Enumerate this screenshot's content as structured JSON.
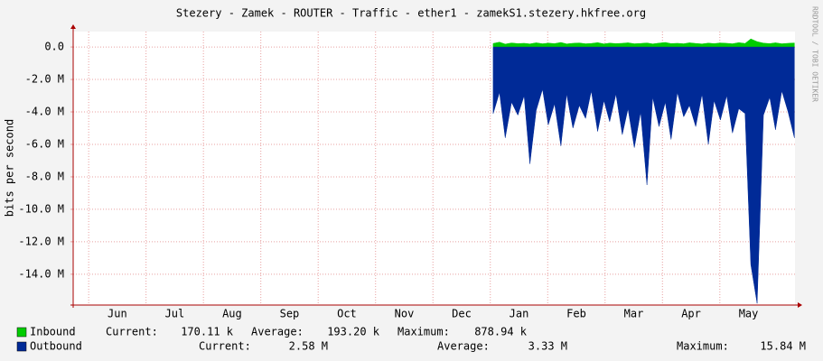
{
  "chart_data": {
    "type": "area",
    "title": "Stezery - Zamek - ROUTER - Traffic - ether1 - zamekS1.stezery.hkfree.org",
    "y_label": "bits per second",
    "watermark": "RRDTOOL / TOBI OETIKER",
    "ylim": [
      -15900000,
      950000
    ],
    "yticks": [
      {
        "value": 0,
        "label": "0.0"
      },
      {
        "value": -2000000,
        "label": "-2.0 M"
      },
      {
        "value": -4000000,
        "label": "-4.0 M"
      },
      {
        "value": -6000000,
        "label": "-6.0 M"
      },
      {
        "value": -8000000,
        "label": "-8.0 M"
      },
      {
        "value": -10000000,
        "label": "-10.0 M"
      },
      {
        "value": -12000000,
        "label": "-12.0 M"
      },
      {
        "value": -14000000,
        "label": "-14.0 M"
      }
    ],
    "xlim": [
      -0.77,
      11.81
    ],
    "xticks": [
      {
        "value": 0,
        "label": "Jun"
      },
      {
        "value": 1,
        "label": "Jul"
      },
      {
        "value": 2,
        "label": "Aug"
      },
      {
        "value": 3,
        "label": "Sep"
      },
      {
        "value": 4,
        "label": "Oct"
      },
      {
        "value": 5,
        "label": "Nov"
      },
      {
        "value": 6,
        "label": "Dec"
      },
      {
        "value": 7,
        "label": "Jan"
      },
      {
        "value": 8,
        "label": "Feb"
      },
      {
        "value": 9,
        "label": "Mar"
      },
      {
        "value": 10,
        "label": "Apr"
      },
      {
        "value": 11,
        "label": "May"
      }
    ],
    "grid": true,
    "x": [
      6.55,
      6.66,
      6.76,
      6.87,
      6.98,
      7.09,
      7.19,
      7.3,
      7.41,
      7.51,
      7.62,
      7.73,
      7.83,
      7.94,
      8.05,
      8.16,
      8.26,
      8.37,
      8.48,
      8.58,
      8.69,
      8.8,
      8.9,
      9.01,
      9.12,
      9.23,
      9.33,
      9.44,
      9.55,
      9.65,
      9.76,
      9.87,
      9.97,
      10.08,
      10.19,
      10.3,
      10.4,
      10.51,
      10.62,
      10.72,
      10.83,
      10.94,
      11.04,
      11.15,
      11.26,
      11.37,
      11.47,
      11.58,
      11.69,
      11.8
    ],
    "series": [
      {
        "name": "Inbound",
        "color": "#00cc00",
        "values": [
          220000,
          300000,
          180000,
          250000,
          210000,
          230000,
          190000,
          260000,
          200000,
          240000,
          210000,
          280000,
          190000,
          230000,
          250000,
          200000,
          220000,
          270000,
          190000,
          240000,
          210000,
          230000,
          260000,
          200000,
          220000,
          250000,
          190000,
          240000,
          280000,
          210000,
          230000,
          200000,
          260000,
          220000,
          190000,
          240000,
          210000,
          250000,
          230000,
          200000,
          270000,
          220000,
          500000,
          330000,
          240000,
          210000,
          260000,
          200000,
          230000,
          250000
        ],
        "stats": [
          {
            "label": "Current:",
            "value": "170.11 k"
          },
          {
            "label": "Average:",
            "value": "193.20 k"
          },
          {
            "label": "Maximum:",
            "value": "878.94 k"
          }
        ]
      },
      {
        "name": "Outbound",
        "color": "#002a97",
        "values": [
          -4100000,
          -2800000,
          -5600000,
          -3400000,
          -4200000,
          -3000000,
          -7200000,
          -3900000,
          -2600000,
          -4800000,
          -3500000,
          -6100000,
          -2900000,
          -5000000,
          -3600000,
          -4400000,
          -2700000,
          -5200000,
          -3300000,
          -4600000,
          -2900000,
          -5400000,
          -3800000,
          -6200000,
          -4000000,
          -8500000,
          -3100000,
          -4900000,
          -3400000,
          -5700000,
          -2800000,
          -4300000,
          -3600000,
          -4900000,
          -2900000,
          -6000000,
          -3300000,
          -4500000,
          -3000000,
          -5300000,
          -3800000,
          -4100000,
          -13400000,
          -15800000,
          -4200000,
          -3100000,
          -5100000,
          -2700000,
          -4000000,
          -5600000
        ],
        "stats": [
          {
            "label": "Current:",
            "value": "2.58 M"
          },
          {
            "label": "Average:",
            "value": "3.33 M"
          },
          {
            "label": "Maximum:",
            "value": "15.84 M"
          }
        ]
      }
    ]
  }
}
